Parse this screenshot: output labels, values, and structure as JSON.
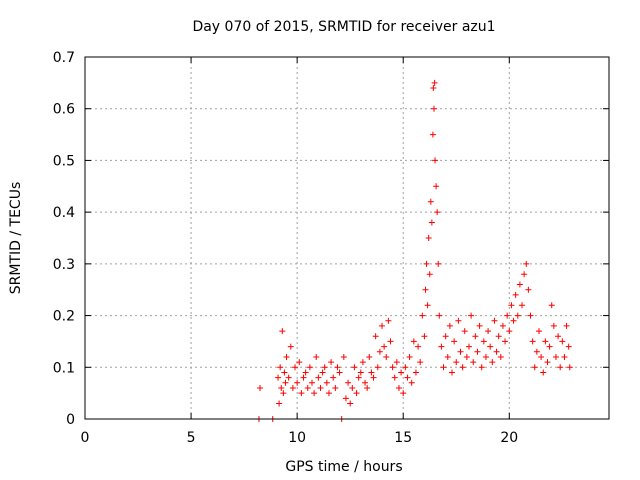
{
  "chart_data": {
    "type": "scatter",
    "title": "Day 070 of 2015, SRMTID for receiver azu1",
    "xlabel": "GPS time / hours",
    "ylabel": "SRMTID / TECUs",
    "xlim": [
      0,
      24.7
    ],
    "ylim": [
      0,
      0.7
    ],
    "xticks": [
      0,
      5,
      10,
      15,
      20
    ],
    "xtick_labels": [
      "0",
      "5",
      "10",
      "15",
      "20"
    ],
    "yticks": [
      0,
      0.1,
      0.2,
      0.3,
      0.4,
      0.5,
      0.6,
      0.7
    ],
    "ytick_labels": [
      "0",
      "0.1",
      "0.2",
      "0.3",
      "0.4",
      "0.5",
      "0.6",
      "0.7"
    ],
    "grid": true,
    "marker": "+",
    "color": "#ff0000",
    "series": [
      {
        "name": "SRMTID",
        "x": [
          8.2,
          8.25,
          8.85,
          9.1,
          9.15,
          9.2,
          9.25,
          9.3,
          9.35,
          9.4,
          9.45,
          9.5,
          9.6,
          9.7,
          9.8,
          9.9,
          10.0,
          10.1,
          10.2,
          10.3,
          10.4,
          10.5,
          10.6,
          10.7,
          10.8,
          10.9,
          11.0,
          11.1,
          11.2,
          11.3,
          11.4,
          11.5,
          11.6,
          11.7,
          11.8,
          11.9,
          12.0,
          12.1,
          12.2,
          12.3,
          12.4,
          12.5,
          12.6,
          12.7,
          12.8,
          12.9,
          13.0,
          13.1,
          13.2,
          13.3,
          13.4,
          13.5,
          13.6,
          13.7,
          13.8,
          13.9,
          14.0,
          14.1,
          14.2,
          14.3,
          14.4,
          14.5,
          14.6,
          14.7,
          14.8,
          14.9,
          15.0,
          15.1,
          15.2,
          15.3,
          15.4,
          15.5,
          15.6,
          15.7,
          15.8,
          15.9,
          16.0,
          16.05,
          16.1,
          16.15,
          16.2,
          16.25,
          16.3,
          16.35,
          16.4,
          16.42,
          16.45,
          16.48,
          16.5,
          16.55,
          16.6,
          16.65,
          16.7,
          16.8,
          16.9,
          17.0,
          17.1,
          17.2,
          17.3,
          17.4,
          17.5,
          17.6,
          17.7,
          17.8,
          17.9,
          18.0,
          18.1,
          18.2,
          18.3,
          18.4,
          18.5,
          18.6,
          18.7,
          18.8,
          18.9,
          19.0,
          19.1,
          19.2,
          19.3,
          19.4,
          19.5,
          19.6,
          19.7,
          19.8,
          19.9,
          20.0,
          20.1,
          20.2,
          20.3,
          20.4,
          20.5,
          20.6,
          20.7,
          20.8,
          20.9,
          21.0,
          21.1,
          21.2,
          21.3,
          21.4,
          21.5,
          21.6,
          21.7,
          21.8,
          21.9,
          22.0,
          22.1,
          22.2,
          22.3,
          22.4,
          22.5,
          22.6,
          22.7,
          22.8,
          22.85
        ],
        "y": [
          0.0,
          0.06,
          0.0,
          0.08,
          0.03,
          0.1,
          0.06,
          0.17,
          0.05,
          0.09,
          0.07,
          0.12,
          0.08,
          0.14,
          0.06,
          0.1,
          0.07,
          0.11,
          0.05,
          0.08,
          0.09,
          0.06,
          0.1,
          0.07,
          0.05,
          0.12,
          0.08,
          0.06,
          0.09,
          0.1,
          0.07,
          0.05,
          0.11,
          0.08,
          0.06,
          0.1,
          0.09,
          0.0,
          0.12,
          0.04,
          0.07,
          0.03,
          0.06,
          0.1,
          0.05,
          0.08,
          0.09,
          0.11,
          0.07,
          0.06,
          0.12,
          0.09,
          0.08,
          0.16,
          0.1,
          0.13,
          0.18,
          0.14,
          0.12,
          0.19,
          0.15,
          0.1,
          0.08,
          0.11,
          0.06,
          0.09,
          0.05,
          0.1,
          0.08,
          0.12,
          0.07,
          0.15,
          0.09,
          0.14,
          0.11,
          0.2,
          0.16,
          0.25,
          0.3,
          0.22,
          0.35,
          0.28,
          0.42,
          0.38,
          0.55,
          0.64,
          0.6,
          0.65,
          0.5,
          0.45,
          0.4,
          0.3,
          0.2,
          0.14,
          0.1,
          0.16,
          0.12,
          0.18,
          0.09,
          0.15,
          0.11,
          0.19,
          0.13,
          0.1,
          0.17,
          0.12,
          0.14,
          0.2,
          0.11,
          0.16,
          0.13,
          0.18,
          0.1,
          0.15,
          0.12,
          0.17,
          0.14,
          0.11,
          0.19,
          0.13,
          0.16,
          0.12,
          0.18,
          0.15,
          0.2,
          0.17,
          0.22,
          0.19,
          0.24,
          0.2,
          0.26,
          0.22,
          0.28,
          0.3,
          0.25,
          0.2,
          0.15,
          0.1,
          0.13,
          0.17,
          0.12,
          0.09,
          0.15,
          0.11,
          0.14,
          0.22,
          0.18,
          0.12,
          0.16,
          0.1,
          0.15,
          0.12,
          0.18,
          0.14,
          0.1
        ]
      }
    ]
  }
}
